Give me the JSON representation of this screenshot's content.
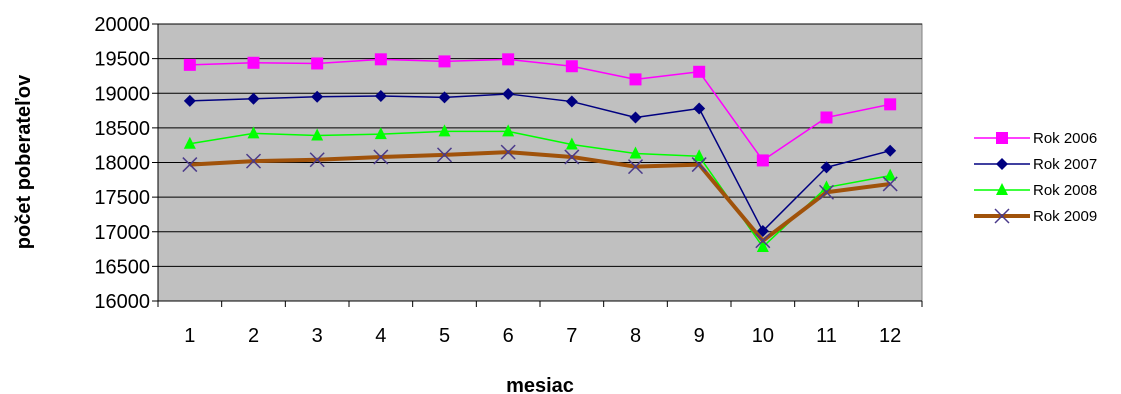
{
  "chart_data": {
    "type": "line",
    "title": "",
    "xlabel": "mesiac",
    "ylabel": "počet poberateľov",
    "categories": [
      "1",
      "2",
      "3",
      "4",
      "5",
      "6",
      "7",
      "8",
      "9",
      "10",
      "11",
      "12"
    ],
    "ylim": [
      16000,
      20000
    ],
    "yticks": [
      "16000",
      "16500",
      "17000",
      "17500",
      "18000",
      "18500",
      "19000",
      "19500",
      "20000"
    ],
    "grid": "horizontal",
    "plot_background": "#c0c0c0",
    "legend_position": "right",
    "series": [
      {
        "name": "Rok 2006",
        "color": "#ff00ff",
        "marker": "square",
        "values": [
          19410,
          19440,
          19430,
          19490,
          19460,
          19490,
          19390,
          19200,
          19310,
          18030,
          18650,
          18840
        ]
      },
      {
        "name": "Rok 2007",
        "color": "#000080",
        "marker": "diamond",
        "values": [
          18890,
          18920,
          18950,
          18960,
          18940,
          18990,
          18880,
          18650,
          18780,
          17010,
          17930,
          18170
        ]
      },
      {
        "name": "Rok 2008",
        "color": "#00ff00",
        "marker": "triangle",
        "values": [
          18270,
          18420,
          18390,
          18410,
          18450,
          18450,
          18260,
          18130,
          18090,
          16780,
          17640,
          17810
        ]
      },
      {
        "name": "Rok 2009",
        "color": "#a0520a",
        "marker": "x",
        "values": [
          17970,
          18020,
          18040,
          18080,
          18110,
          18150,
          18080,
          17940,
          17970,
          16870,
          17570,
          17690
        ]
      }
    ]
  }
}
